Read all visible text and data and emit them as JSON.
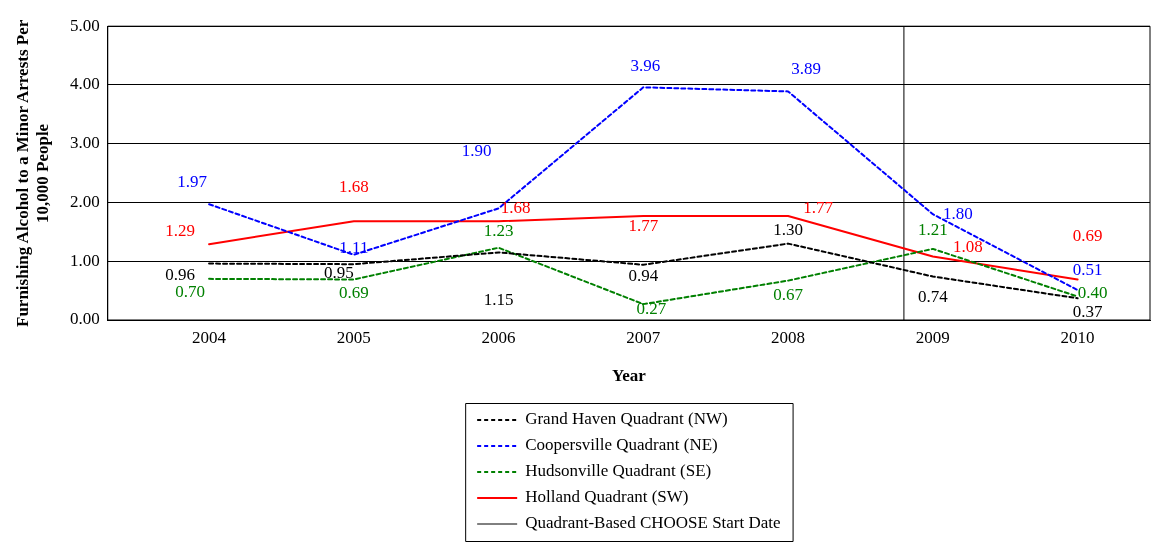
{
  "chart_data": {
    "type": "line",
    "xlabel": "Year",
    "ylabel": "Furnishing Alcohol to a Minor Arrests Per 10,000 People",
    "x": [
      2004,
      2005,
      2006,
      2007,
      2008,
      2009,
      2010
    ],
    "xlim": [
      2003.3,
      2010.5
    ],
    "xticks": [
      2004,
      2005,
      2006,
      2007,
      2008,
      2009,
      2010
    ],
    "ylim": [
      0,
      5
    ],
    "yticks": [
      {
        "value": 0,
        "label": "0.00"
      },
      {
        "value": 1,
        "label": "1.00"
      },
      {
        "value": 2,
        "label": "2.00"
      },
      {
        "value": 3,
        "label": "3.00"
      },
      {
        "value": 4,
        "label": "4.00"
      },
      {
        "value": 5,
        "label": "5.00"
      }
    ],
    "grid": "y",
    "legend": "bottom",
    "marker": "none",
    "series": [
      {
        "name": "Grand Haven Quadrant (NW)",
        "color": "#000000",
        "line_style": "dashed",
        "values": [
          0.96,
          0.95,
          1.15,
          0.94,
          1.3,
          0.74,
          0.37
        ],
        "value_labels": [
          "0.96",
          "0.95",
          "1.15",
          "0.94",
          "1.30",
          "0.74",
          "0.37"
        ]
      },
      {
        "name": "Coopersville Quadrant (NE)",
        "color": "#0000ff",
        "line_style": "dashed",
        "values": [
          1.97,
          1.11,
          1.9,
          3.96,
          3.89,
          1.8,
          0.51
        ],
        "value_labels": [
          "1.97",
          "1.11",
          "1.90",
          "3.96",
          "3.89",
          "1.80",
          "0.51"
        ]
      },
      {
        "name": "Hudsonville Quadrant (SE)",
        "color": "#008000",
        "line_style": "dashed",
        "values": [
          0.7,
          0.69,
          1.23,
          0.27,
          0.67,
          1.21,
          0.4
        ],
        "value_labels": [
          "0.70",
          "0.69",
          "1.23",
          "0.27",
          "0.67",
          "1.21",
          "0.40"
        ]
      },
      {
        "name": "Holland Quadrant (SW)",
        "color": "#ff0000",
        "line_style": "solid",
        "values": [
          1.29,
          1.68,
          1.68,
          1.77,
          1.77,
          1.08,
          0.69
        ],
        "value_labels": [
          "1.29",
          "1.68",
          "1.68",
          "1.77",
          "1.77",
          "1.08",
          "0.69"
        ]
      }
    ],
    "ref_lines": [
      {
        "axis": "x",
        "value": 2008.8,
        "label": "Quadrant-Based CHOOSE Start Date",
        "color": "#000000",
        "line_style": "solid"
      }
    ]
  }
}
